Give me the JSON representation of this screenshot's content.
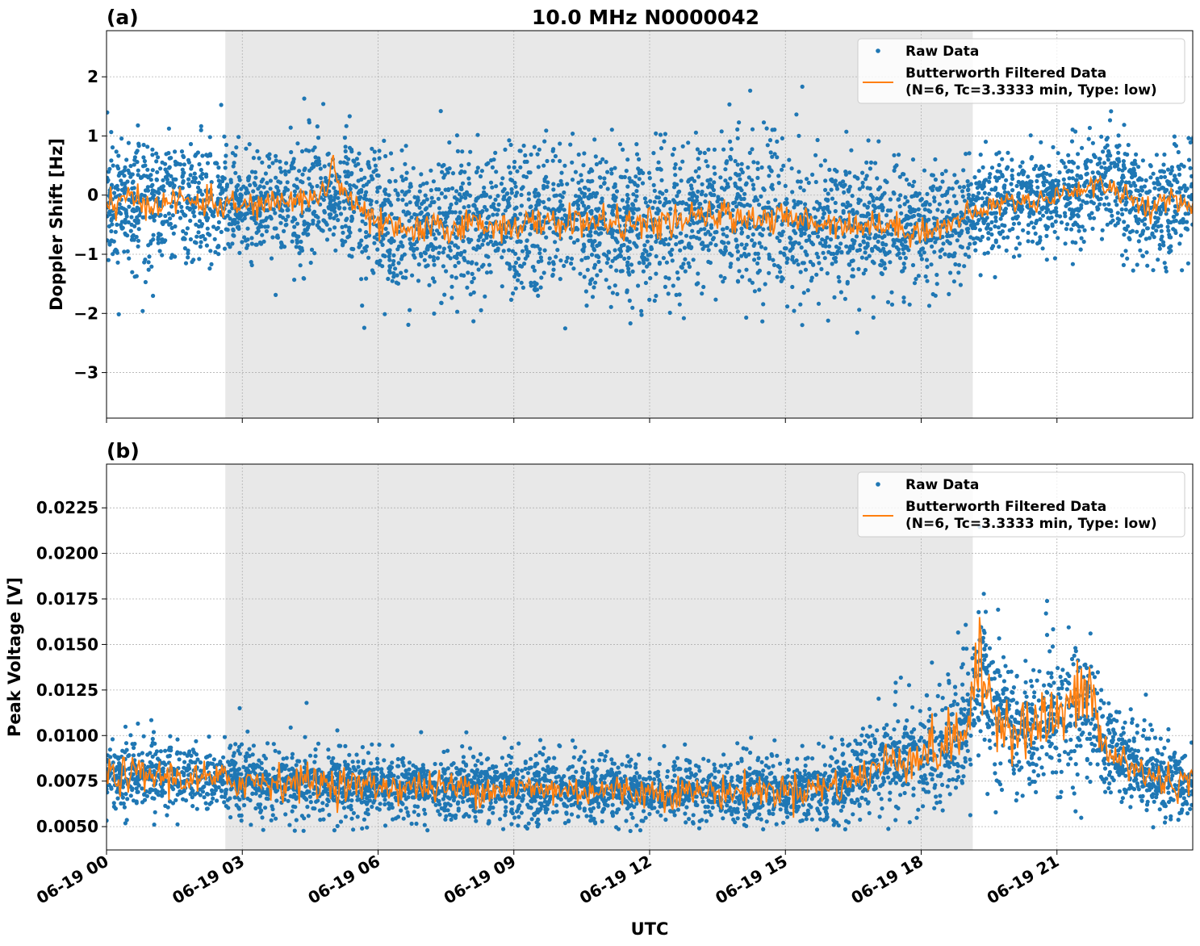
{
  "chart_data": [
    {
      "type": "scatter",
      "panel_label": "(a)",
      "title": "10.0 MHz N0000042",
      "xlabel": "",
      "ylabel": "Doppler Shift [Hz]",
      "xlim_hours": [
        0,
        24
      ],
      "ylim": [
        -3.77,
        2.78
      ],
      "yticks": [
        2,
        1,
        0,
        -1,
        -2,
        -3
      ],
      "ytick_labels": [
        "2",
        "1",
        "0",
        "−1",
        "−2",
        "−3"
      ],
      "grid": true,
      "shaded_interval_hours": [
        2.625,
        19.14
      ],
      "legend": {
        "placement": "top-right",
        "entries": [
          "Raw Data",
          "Butterworth Filtered Data",
          "(N=6, Tc=3.3333 min, Type: low)"
        ]
      },
      "series": [
        {
          "name": "Raw Data",
          "color": "#1f77b4",
          "kind": "points",
          "x_hours": [
            0,
            0.5,
            1,
            1.5,
            2,
            2.5,
            3,
            3.5,
            4,
            4.5,
            5,
            5.5,
            6,
            6.5,
            7,
            7.5,
            8,
            8.5,
            9,
            9.5,
            10,
            10.5,
            11,
            11.5,
            12,
            12.5,
            13,
            13.5,
            14,
            14.5,
            15,
            15.5,
            16,
            16.5,
            17,
            17.5,
            18,
            18.5,
            19,
            19.5,
            20,
            20.5,
            21,
            21.5,
            22,
            22.5,
            23,
            23.5,
            24
          ],
          "center": [
            -0.1,
            -0.1,
            -0.15,
            -0.1,
            -0.1,
            -0.15,
            -0.2,
            -0.15,
            -0.1,
            -0.05,
            0.1,
            -0.2,
            -0.5,
            -0.6,
            -0.6,
            -0.55,
            -0.5,
            -0.5,
            -0.5,
            -0.5,
            -0.45,
            -0.45,
            -0.45,
            -0.5,
            -0.5,
            -0.45,
            -0.4,
            -0.35,
            -0.35,
            -0.4,
            -0.4,
            -0.45,
            -0.45,
            -0.5,
            -0.5,
            -0.55,
            -0.6,
            -0.55,
            -0.35,
            -0.2,
            -0.1,
            -0.1,
            0.0,
            0.1,
            0.2,
            0.0,
            -0.2,
            -0.15,
            -0.1
          ],
          "spread": [
            0.55,
            0.55,
            0.55,
            0.55,
            0.55,
            0.55,
            0.5,
            0.5,
            0.5,
            0.55,
            0.55,
            0.55,
            0.6,
            0.6,
            0.6,
            0.6,
            0.6,
            0.6,
            0.6,
            0.6,
            0.6,
            0.6,
            0.6,
            0.6,
            0.6,
            0.6,
            0.6,
            0.6,
            0.6,
            0.6,
            0.6,
            0.6,
            0.55,
            0.55,
            0.55,
            0.55,
            0.55,
            0.5,
            0.45,
            0.4,
            0.4,
            0.4,
            0.4,
            0.4,
            0.45,
            0.45,
            0.5,
            0.5,
            0.5
          ]
        },
        {
          "name": "Butterworth Filtered Data",
          "color": "#ff7f0e",
          "kind": "line",
          "x_hours": [
            0,
            0.5,
            1,
            1.5,
            2,
            2.5,
            3,
            3.5,
            4,
            4.5,
            4.9,
            5.0,
            5.1,
            5.5,
            6,
            6.5,
            7,
            7.5,
            8,
            8.5,
            9,
            9.5,
            10,
            10.5,
            11,
            11.5,
            12,
            12.5,
            13,
            13.5,
            14,
            14.5,
            15,
            15.5,
            16,
            16.5,
            17,
            17.5,
            18,
            18.5,
            19,
            19.5,
            20,
            20.5,
            21,
            21.5,
            22,
            22.5,
            23,
            23.5,
            24
          ],
          "y": [
            -0.1,
            -0.1,
            -0.15,
            -0.1,
            -0.1,
            -0.15,
            -0.2,
            -0.15,
            -0.1,
            -0.05,
            0.1,
            0.7,
            0.2,
            -0.2,
            -0.5,
            -0.6,
            -0.6,
            -0.55,
            -0.5,
            -0.5,
            -0.5,
            -0.5,
            -0.45,
            -0.45,
            -0.45,
            -0.5,
            -0.5,
            -0.45,
            -0.4,
            -0.35,
            -0.35,
            -0.4,
            -0.4,
            -0.45,
            -0.45,
            -0.5,
            -0.5,
            -0.55,
            -0.6,
            -0.55,
            -0.35,
            -0.2,
            -0.1,
            -0.1,
            0.0,
            0.1,
            0.2,
            0.0,
            -0.2,
            -0.15,
            -0.1
          ]
        }
      ]
    },
    {
      "type": "scatter",
      "panel_label": "(b)",
      "title": "",
      "xlabel": "UTC",
      "ylabel": "Peak Voltage [V]",
      "xlim_hours": [
        0,
        24
      ],
      "ylim": [
        0.00372,
        0.0249
      ],
      "yticks": [
        0.0225,
        0.02,
        0.0175,
        0.015,
        0.0125,
        0.01,
        0.0075,
        0.005
      ],
      "ytick_labels": [
        "0.0225",
        "0.0200",
        "0.0175",
        "0.0150",
        "0.0125",
        "0.0100",
        "0.0075",
        "0.0050"
      ],
      "xticks_hours": [
        0,
        3,
        6,
        9,
        12,
        15,
        18,
        21
      ],
      "xtick_labels": [
        "06-19 00",
        "06-19 03",
        "06-19 06",
        "06-19 09",
        "06-19 12",
        "06-19 15",
        "06-19 18",
        "06-19 21"
      ],
      "grid": true,
      "shaded_interval_hours": [
        2.625,
        19.14
      ],
      "legend": {
        "placement": "top-right",
        "entries": [
          "Raw Data",
          "Butterworth Filtered Data",
          "(N=6, Tc=3.3333 min, Type: low)"
        ]
      },
      "series": [
        {
          "name": "Raw Data",
          "color": "#1f77b4",
          "kind": "points",
          "x_hours": [
            0,
            1,
            2,
            3,
            4,
            5,
            6,
            7,
            8,
            9,
            10,
            11,
            12,
            13,
            14,
            15,
            16,
            16.5,
            17,
            17.5,
            18,
            18.5,
            19,
            19.3,
            19.6,
            20,
            20.5,
            21,
            21.5,
            21.8,
            22,
            22.5,
            23,
            23.5,
            24
          ],
          "center": [
            0.0078,
            0.0078,
            0.0076,
            0.0075,
            0.0075,
            0.0074,
            0.0072,
            0.0072,
            0.0071,
            0.0071,
            0.007,
            0.007,
            0.0069,
            0.0069,
            0.0069,
            0.007,
            0.0072,
            0.0075,
            0.0082,
            0.0088,
            0.009,
            0.0093,
            0.0105,
            0.013,
            0.012,
            0.0105,
            0.0105,
            0.011,
            0.0115,
            0.0115,
            0.0092,
            0.0085,
            0.0078,
            0.0075,
            0.0073
          ],
          "spread": [
            0.0011,
            0.0011,
            0.0011,
            0.0011,
            0.0011,
            0.0011,
            0.001,
            0.001,
            0.001,
            0.001,
            0.001,
            0.001,
            0.001,
            0.001,
            0.001,
            0.001,
            0.0011,
            0.0012,
            0.0013,
            0.0015,
            0.0016,
            0.0018,
            0.0022,
            0.0028,
            0.0022,
            0.0018,
            0.002,
            0.0022,
            0.0023,
            0.0022,
            0.0015,
            0.0013,
            0.0012,
            0.0011,
            0.0011
          ]
        },
        {
          "name": "Butterworth Filtered Data",
          "color": "#ff7f0e",
          "kind": "line",
          "x_hours": [
            0,
            1,
            2,
            3,
            4,
            5,
            6,
            7,
            8,
            9,
            10,
            11,
            12,
            13,
            14,
            15,
            16,
            16.5,
            17,
            17.5,
            18,
            18.5,
            19,
            19.3,
            19.6,
            20,
            20.5,
            21,
            21.5,
            21.8,
            22,
            22.5,
            23,
            23.5,
            24
          ],
          "y": [
            0.0078,
            0.0078,
            0.0076,
            0.0075,
            0.0075,
            0.0074,
            0.0072,
            0.0072,
            0.0071,
            0.0071,
            0.007,
            0.007,
            0.0069,
            0.0069,
            0.0069,
            0.007,
            0.0072,
            0.0075,
            0.0082,
            0.0088,
            0.009,
            0.0093,
            0.0105,
            0.0135,
            0.0115,
            0.0105,
            0.0105,
            0.011,
            0.012,
            0.0125,
            0.0092,
            0.0085,
            0.0078,
            0.0075,
            0.0073
          ]
        }
      ]
    }
  ]
}
